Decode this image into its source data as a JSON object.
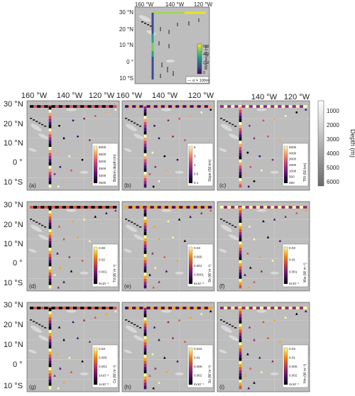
{
  "top_panel": {
    "lon_ticks": [
      "160 °W",
      "140 °W",
      "120 °W"
    ],
    "lat_ticks": [
      "30 °N",
      "20 °N",
      "10 °N",
      "0 °",
      "10 °S"
    ],
    "colorbar_label": "BML height (m)",
    "colorbar_ticks": [
      "600",
      "400",
      "200",
      "0"
    ],
    "scale_label": "— σ = 100m"
  },
  "grid_axes": {
    "lon_ticks": [
      "160 °W",
      "140 °W",
      "120 °W"
    ],
    "lat_ticks": [
      "30 °N",
      "20 °N",
      "10 °N",
      "0 °",
      "10 °S"
    ]
  },
  "depth_colorbar": {
    "label": "Depth (m)",
    "ticks": [
      "1000",
      "2000",
      "3000",
      "4000",
      "5000",
      "6000"
    ]
  },
  "panels": [
    {
      "letter": "(a)",
      "cbar_label": "Bottom depth (m)",
      "cbar_ticks": [
        "6000",
        "5500",
        "5000",
        "4500",
        "4000",
        "3500"
      ],
      "cmap": "magma"
    },
    {
      "letter": "(b)",
      "cbar_label": "Slope (50 km)",
      "cbar_ticks": [
        "5",
        "3",
        "1",
        "0.5",
        "0.1"
      ],
      "cmap": "magma"
    },
    {
      "letter": "(c)",
      "cbar_label": "TRI (50 km)",
      "cbar_ticks": [
        "5000",
        "4000",
        "3000",
        "2000",
        "1000",
        "500",
        "250"
      ],
      "cmap": "magma"
    },
    {
      "letter": "(d)",
      "cbar_label": "Td (W m⁻²)",
      "cbar_ticks": [
        "0.08",
        "0.02",
        "0.001",
        "5x10⁻⁴"
      ],
      "cmap": "inferno"
    },
    {
      "letter": "(e)",
      "cbar_label": "Sk (W m⁻²)",
      "cbar_ticks": [
        "0.03",
        "0.005",
        "0.001",
        "0.0001",
        "5x10⁻⁶"
      ],
      "cmap": "inferno"
    },
    {
      "letter": "(f)",
      "cbar_label": "Ww (W m⁻²)",
      "cbar_ticks": [
        "0.03",
        "0.01",
        "0.001",
        "5x10⁻⁴"
      ],
      "cmap": "inferno"
    },
    {
      "letter": "(g)",
      "cbar_label": "Cs (W m⁻²)",
      "cbar_ticks": [
        "0.03",
        "0.005",
        "0.001",
        "1x10⁻⁶",
        "1x10⁻⁸"
      ],
      "cmap": "inferno"
    },
    {
      "letter": "(h)",
      "cbar_label": "Sc (W m⁻²)",
      "cbar_ticks": [
        "0.016",
        "0.01",
        "0.006",
        "0.002",
        "4x10⁻⁴"
      ],
      "cmap": "inferno"
    },
    {
      "letter": "(i)",
      "cbar_label": "Hm (W m⁻²)",
      "cbar_ticks": [
        "0.03",
        "0.01",
        "0.006",
        "0.002",
        "4x10⁻⁴"
      ],
      "cmap": "inferno"
    }
  ],
  "colors": {
    "map_background": "#bdbdbd",
    "seamount_light": "#e4e4e4",
    "seamount_dark": "#8a8a8a",
    "land": "#1a1a1a",
    "text": "#222222"
  }
}
